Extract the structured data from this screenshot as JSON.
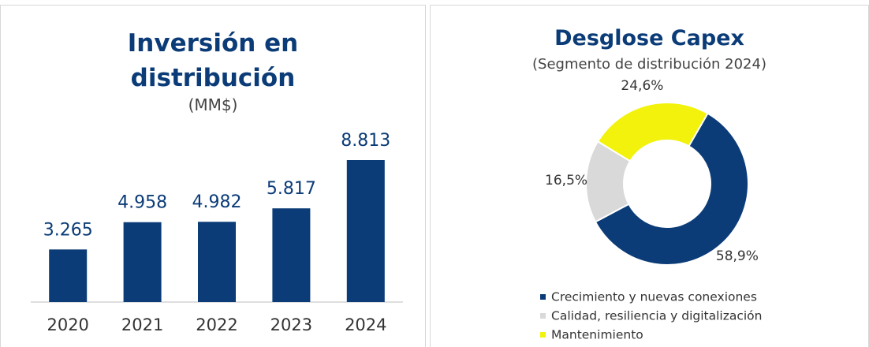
{
  "chart_data": [
    {
      "type": "bar",
      "title": "Inversión en distribución",
      "subtitle": "(MM$)",
      "categories": [
        "2020",
        "2021",
        "2022",
        "2023",
        "2024"
      ],
      "values": [
        3265,
        4958,
        4982,
        5817,
        8813
      ],
      "value_labels": [
        "3.265",
        "4.958",
        "4.982",
        "5.817",
        "8.813"
      ],
      "color": "#0b3c78"
    },
    {
      "type": "pie",
      "title": "Desglose Capex",
      "subtitle": "(Segmento de distribución 2024)",
      "categories": [
        "Crecimiento y nuevas conexiones",
        "Calidad, resiliencia y digitalización",
        "Mantenimiento"
      ],
      "values": [
        58.9,
        16.5,
        24.6
      ],
      "value_labels": [
        "58,9%",
        "16,5%",
        "24,6%"
      ],
      "colors": [
        "#0b3c78",
        "#d9d9d9",
        "#f2f20c"
      ]
    }
  ]
}
